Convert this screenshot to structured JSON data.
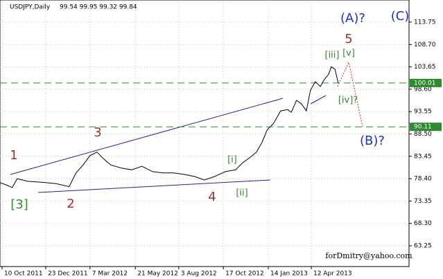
{
  "chart_data": {
    "type": "line",
    "title": "USDJPY,Daily",
    "subtitle": "99.54 99.95 99.32 99.84",
    "series": [
      {
        "name": "USDJPY",
        "color": "#000000",
        "x": [
          0,
          1.5,
          3,
          4.2,
          6.8,
          10.2,
          13.6,
          16.9,
          18.6,
          20.3,
          22,
          23.7,
          25.4,
          27.1,
          29.7,
          32.2,
          34.7,
          37.3,
          39.8,
          42.4,
          44.9,
          47.5,
          50,
          52.5,
          55.1,
          57.6,
          59.3,
          61,
          62.7,
          64.1,
          65.3,
          66.9,
          68.6,
          70.3,
          71.2,
          72.5,
          73.7,
          74.9,
          75.9,
          77.1,
          78.3,
          79.3,
          80.3,
          81,
          81.9,
          82.7
        ],
        "values": [
          77.5,
          77.0,
          76.4,
          78.4,
          77.8,
          77.6,
          77.3,
          76.6,
          79.7,
          81.5,
          83.6,
          84.4,
          82.8,
          81.5,
          80.8,
          80.4,
          81.2,
          80.0,
          79.7,
          79.7,
          79.4,
          78.9,
          78.1,
          78.9,
          80.0,
          80.4,
          82.0,
          83.1,
          84.4,
          86.7,
          89.4,
          90.9,
          93.7,
          94.0,
          93.4,
          96.1,
          95.3,
          93.7,
          98.4,
          100.3,
          99.2,
          100.8,
          101.9,
          103.7,
          103.1,
          99.99
        ]
      }
    ],
    "xlim": [
      0,
      100
    ],
    "xticks": [
      {
        "value": 0.5,
        "label": "10 Oct 2011"
      },
      {
        "value": 11.2,
        "label": "23 Dec 2011"
      },
      {
        "value": 22.0,
        "label": "7 Mar 2012"
      },
      {
        "value": 33.1,
        "label": "21 May 2012"
      },
      {
        "value": 43.7,
        "label": "3 Aug 2012"
      },
      {
        "value": 54.6,
        "label": "17 Oct 2012"
      },
      {
        "value": 65.6,
        "label": "14 Jan 2013"
      },
      {
        "value": 76.1,
        "label": "12 Apr 2013"
      }
    ],
    "ylim": [
      58.56,
      118.28
    ],
    "yticks": [
      113.75,
      {
        "value": 108.7,
        "label": "108.70"
      },
      103.65,
      {
        "value": 98.6,
        "label": "98.60"
      },
      93.55,
      {
        "value": 88.5,
        "label": "88.50"
      },
      83.45,
      {
        "value": 78.4,
        "label": "78.40"
      },
      73.35,
      {
        "value": 68.3,
        "label": "68.30"
      },
      63.25
    ],
    "levels": [
      100.01,
      90.11
    ],
    "level_color": "#2e8b2e",
    "grid": true,
    "annotations": [
      "1",
      "2",
      "3",
      "4",
      "5",
      "[3]",
      "[i]",
      "[ii]",
      "[iii]",
      "[v]",
      "[iv]?",
      "(A)?",
      "(C)",
      "(B)?",
      "forDmitry@yahoo.com"
    ]
  }
}
